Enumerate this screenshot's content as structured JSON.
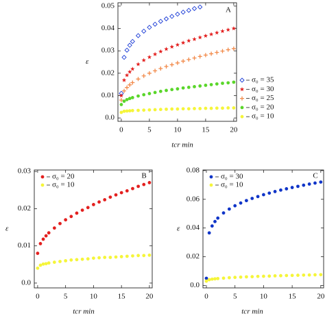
{
  "chart_data": [
    {
      "type": "scatter",
      "annotation": "A",
      "x_label": "tcr   min",
      "y_label": "ε",
      "x": [
        0,
        0.5,
        1,
        1.5,
        2,
        3,
        4,
        5,
        6,
        7,
        8,
        9,
        10,
        11,
        12,
        13,
        14,
        15,
        16,
        17,
        18,
        19,
        20
      ],
      "xlim": [
        -0.6,
        20.5
      ],
      "ylim": [
        -0.0015,
        0.0515
      ],
      "xticks": [
        0,
        5,
        10,
        15,
        20
      ],
      "yticks": [
        {
          "value": 0,
          "label": "0.0"
        },
        0.01,
        0.02,
        0.03,
        0.04,
        0.05
      ],
      "legend": "right",
      "series": [
        {
          "name": "σ₀ = 35",
          "color": "#1a3bd6",
          "marker": "diamond",
          "values": [
            0.011,
            0.0271,
            0.0303,
            0.0325,
            0.0342,
            0.0368,
            0.0388,
            0.0405,
            0.0419,
            0.0432,
            0.0443,
            0.0454,
            0.0464,
            0.0473,
            0.0481,
            0.0489,
            0.0496,
            null,
            null,
            null,
            null,
            null,
            null
          ]
        },
        {
          "name": "σ₀ = 30",
          "color": "#e3201f",
          "marker": "star",
          "values": [
            0.01,
            0.0169,
            0.0191,
            0.0206,
            0.0219,
            0.024,
            0.0258,
            0.0272,
            0.0285,
            0.0297,
            0.0308,
            0.0318,
            0.0327,
            0.0336,
            0.0345,
            0.0352,
            0.036,
            0.0367,
            0.0374,
            0.0381,
            0.0388,
            0.0394,
            0.04
          ]
        },
        {
          "name": "σ₀ = 25",
          "color": "#f28a4a",
          "marker": "plus",
          "values": [
            0.008,
            0.0121,
            0.0136,
            0.0148,
            0.0158,
            0.0174,
            0.0188,
            0.02,
            0.0211,
            0.0221,
            0.023,
            0.0238,
            0.0246,
            0.0254,
            0.0261,
            0.0268,
            0.0275,
            0.0281,
            0.0287,
            0.0293,
            0.0299,
            0.0305,
            0.031
          ]
        },
        {
          "name": "σ₀ = 20",
          "color": "#5ad62a",
          "marker": "circle",
          "values": [
            0.006,
            0.0075,
            0.0082,
            0.0087,
            0.0091,
            0.0098,
            0.0104,
            0.0109,
            0.0114,
            0.0119,
            0.0123,
            0.0127,
            0.013,
            0.0134,
            0.0137,
            0.014,
            0.0143,
            0.0146,
            0.0149,
            0.0152,
            0.0155,
            0.0157,
            0.016
          ]
        },
        {
          "name": "σ₀ = 10",
          "color": "#f5f53a",
          "marker": "circle",
          "values": [
            0.0025,
            0.003,
            0.0031,
            0.0032,
            0.0033,
            0.0034,
            0.0035,
            0.0036,
            0.0037,
            0.0038,
            0.0039,
            0.004,
            0.004,
            0.0041,
            0.0041,
            0.0042,
            0.0042,
            0.0043,
            0.0043,
            0.0044,
            0.0044,
            0.0045,
            0.0045
          ]
        }
      ]
    },
    {
      "type": "scatter",
      "annotation": "B",
      "x_label": "tcr   min",
      "y_label": "ε",
      "x": [
        0,
        0.5,
        1,
        1.5,
        2,
        3,
        4,
        5,
        6,
        7,
        8,
        9,
        10,
        11,
        12,
        13,
        14,
        15,
        16,
        17,
        18,
        19,
        20
      ],
      "xlim": [
        -0.6,
        20.5
      ],
      "ylim": [
        -0.0013,
        0.0304
      ],
      "xticks": [
        0,
        5,
        10,
        15,
        20
      ],
      "yticks": [
        {
          "value": 0,
          "label": "0.0"
        },
        0.01,
        0.02,
        0.03
      ],
      "legend": "upper left",
      "series": [
        {
          "name": "σ₀ = 20",
          "color": "#e3201f",
          "marker": "circle",
          "values": [
            0.008,
            0.0106,
            0.0118,
            0.0127,
            0.0135,
            0.0148,
            0.016,
            0.017,
            0.0179,
            0.0188,
            0.0196,
            0.0203,
            0.0211,
            0.0218,
            0.0224,
            0.0231,
            0.0237,
            0.0243,
            0.0248,
            0.0254,
            0.026,
            0.0265,
            0.027
          ]
        },
        {
          "name": "σ₀ = 10",
          "color": "#f5f53a",
          "marker": "circle",
          "values": [
            0.004,
            0.0048,
            0.0051,
            0.0052,
            0.0054,
            0.0056,
            0.0058,
            0.006,
            0.0062,
            0.0063,
            0.0064,
            0.0065,
            0.0067,
            0.0068,
            0.0069,
            0.0069,
            0.007,
            0.0071,
            0.0072,
            0.0073,
            0.0074,
            0.0074,
            0.0075
          ]
        }
      ]
    },
    {
      "type": "scatter",
      "annotation": "C",
      "x_label": "tcr   min",
      "y_label": "ε",
      "x": [
        0,
        0.5,
        1,
        1.5,
        2,
        3,
        4,
        5,
        6,
        7,
        8,
        9,
        10,
        11,
        12,
        13,
        14,
        15,
        16,
        17,
        18,
        19,
        20
      ],
      "xlim": [
        -0.6,
        20.5
      ],
      "ylim": [
        -0.0017,
        0.0804
      ],
      "xticks": [
        0,
        5,
        10,
        15,
        20
      ],
      "yticks": [
        {
          "value": 0,
          "label": "0.0"
        },
        0.02,
        0.04,
        0.06,
        0.08
      ],
      "legend": "upper left",
      "series": [
        {
          "name": "σ₀ = 30",
          "color": "#1035c8",
          "marker": "circle",
          "values": [
            0.005,
            0.0366,
            0.0414,
            0.0445,
            0.0469,
            0.0505,
            0.0532,
            0.0555,
            0.0574,
            0.0591,
            0.0606,
            0.0619,
            0.0632,
            0.0643,
            0.0654,
            0.0664,
            0.0673,
            0.0682,
            0.069,
            0.0698,
            0.0706,
            0.0713,
            0.072
          ]
        },
        {
          "name": "σ₀ = 10",
          "color": "#f5f53a",
          "marker": "circle",
          "values": [
            0.003,
            0.004,
            0.0044,
            0.0046,
            0.0048,
            0.0051,
            0.0054,
            0.0056,
            0.0058,
            0.006,
            0.0061,
            0.0063,
            0.0064,
            0.0065,
            0.0067,
            0.0068,
            0.0069,
            0.007,
            0.0071,
            0.0072,
            0.0073,
            0.0074,
            0.0075
          ]
        }
      ]
    }
  ]
}
